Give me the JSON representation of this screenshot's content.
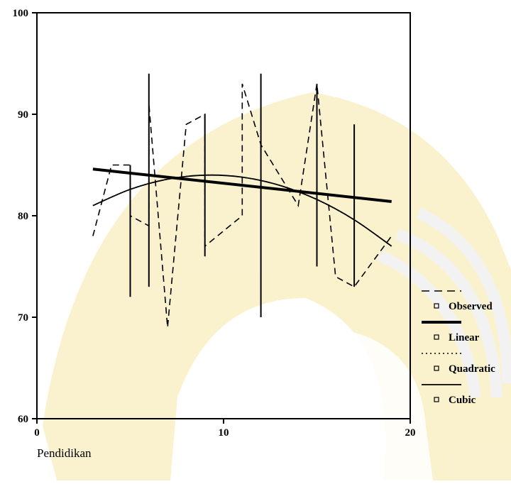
{
  "chart_data": {
    "type": "line",
    "xlabel": "Pendidikan",
    "ylabel": "",
    "xlim": [
      0,
      20
    ],
    "ylim": [
      60,
      100
    ],
    "xticks": [
      0,
      10,
      20
    ],
    "yticks": [
      60,
      70,
      80,
      90,
      100
    ],
    "legend_position": "right",
    "grid": false,
    "series": [
      {
        "name": "Observed",
        "style": "dashed",
        "x": [
          3,
          4,
          5,
          5,
          6,
          6,
          7,
          8,
          9,
          9,
          11,
          11,
          12,
          14,
          15,
          16,
          17,
          19
        ],
        "y": [
          78,
          85,
          85,
          80,
          79,
          91,
          69,
          89,
          90,
          77,
          80,
          93,
          87,
          81,
          93,
          74,
          73,
          78
        ]
      },
      {
        "name": "Linear",
        "style": "thick",
        "x": [
          3,
          19
        ],
        "y": [
          84.6,
          81.4
        ]
      },
      {
        "name": "Quadratic",
        "style": "dotted",
        "x": [
          3,
          5,
          7,
          9,
          11,
          13,
          15,
          17,
          19
        ],
        "y": [
          81.0,
          82.6,
          83.6,
          84.0,
          83.8,
          83.0,
          81.6,
          79.6,
          77.0
        ]
      },
      {
        "name": "Cubic",
        "style": "thin",
        "x": [
          3,
          5,
          7,
          9,
          11,
          13,
          15,
          17,
          19
        ],
        "y": [
          81.0,
          82.6,
          83.6,
          84.0,
          83.8,
          83.0,
          81.6,
          79.6,
          77.0
        ]
      }
    ],
    "observed_ranges": [
      {
        "x": 5,
        "ymin": 72,
        "ymax": 85
      },
      {
        "x": 6,
        "ymin": 73,
        "ymax": 94
      },
      {
        "x": 9,
        "ymin": 76,
        "ymax": 90
      },
      {
        "x": 12,
        "ymin": 70,
        "ymax": 94
      },
      {
        "x": 15,
        "ymin": 75,
        "ymax": 93
      },
      {
        "x": 17,
        "ymin": 73,
        "ymax": 89
      }
    ]
  }
}
